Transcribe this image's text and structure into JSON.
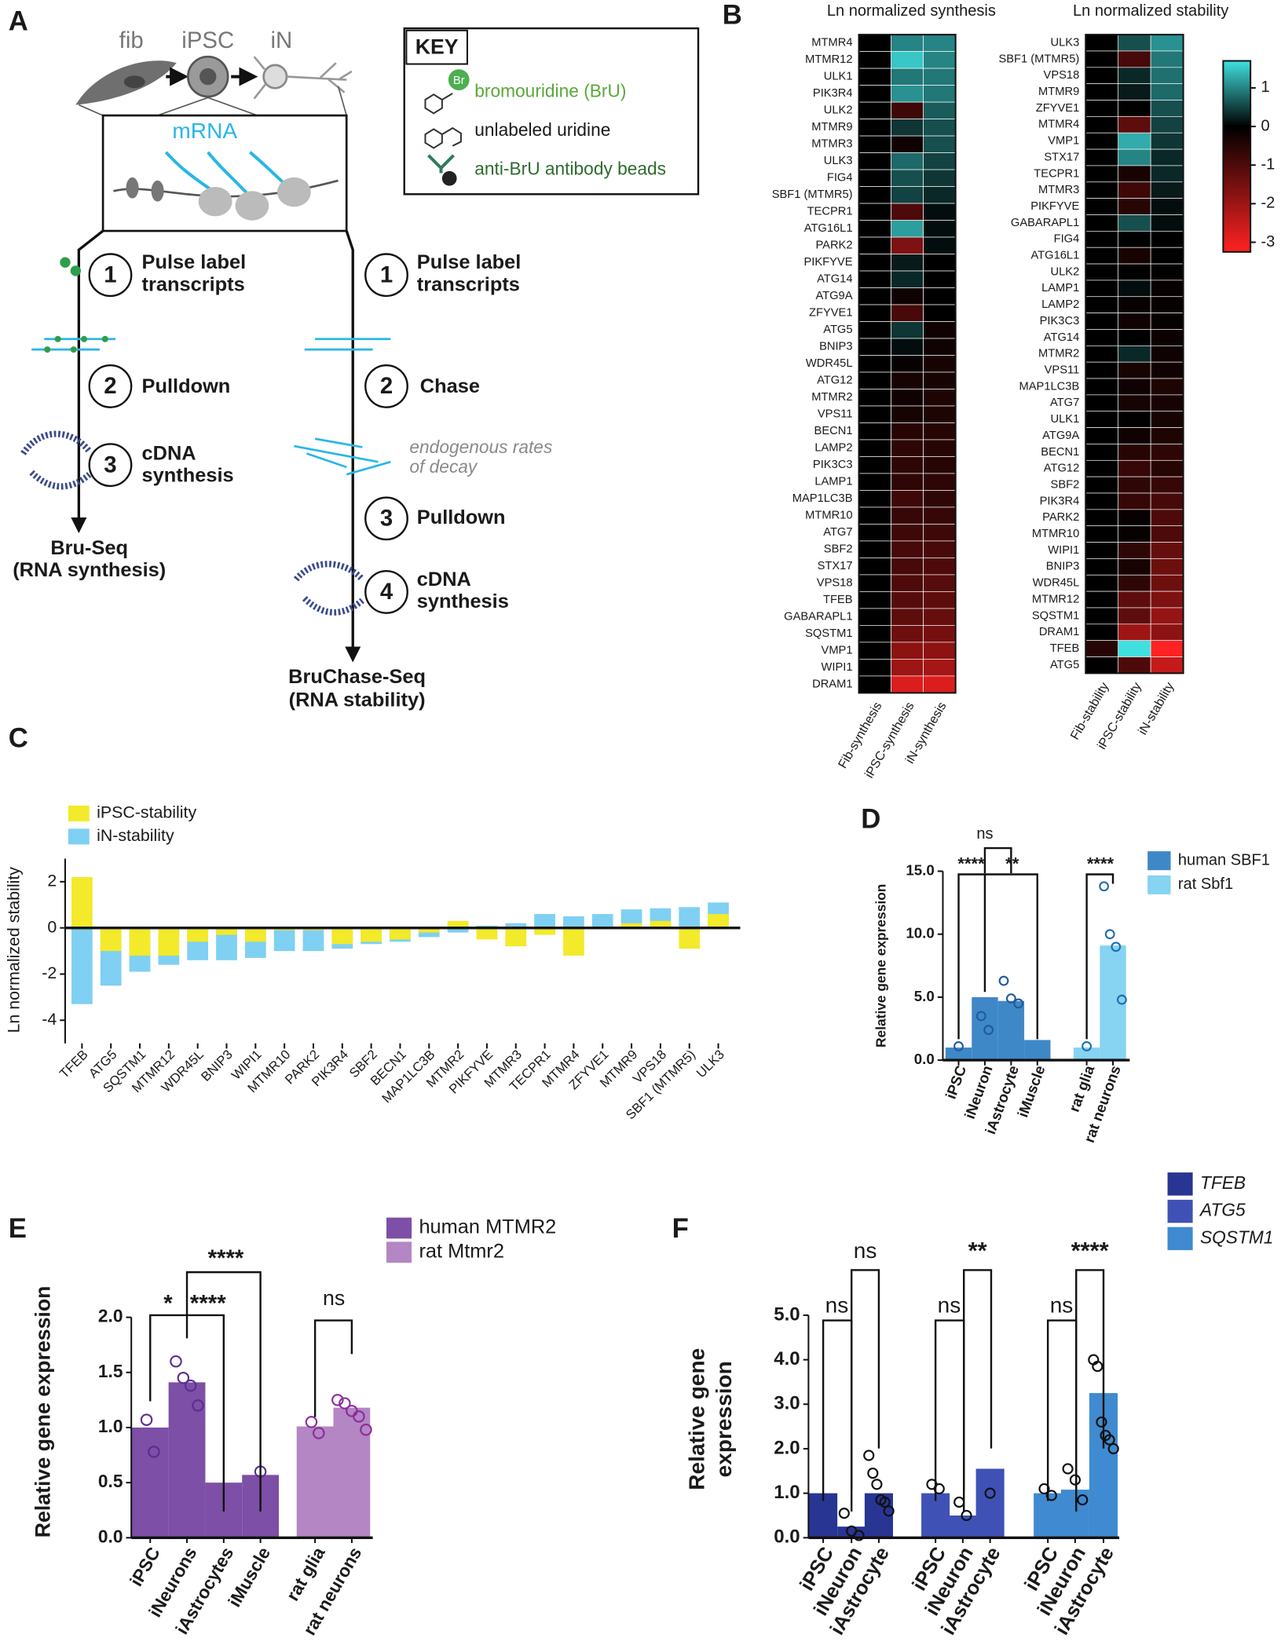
{
  "panels": [
    "A",
    "B",
    "C",
    "D",
    "E",
    "F"
  ],
  "panel_a": {
    "cells": [
      "fib",
      "iPSC",
      "iN"
    ],
    "mrna": "mRNA",
    "key": {
      "title": "KEY",
      "br": "Br",
      "items": [
        "bromouridine (BrU)",
        "unlabeled uridine",
        "anti-BrU antibody beads"
      ]
    },
    "bru_seq": {
      "steps": [
        {
          "number": "1",
          "lines": [
            "Pulse label",
            "transcripts"
          ]
        },
        {
          "number": "2",
          "lines": [
            "Pulldown"
          ]
        },
        {
          "number": "3",
          "lines": [
            "cDNA",
            "synthesis"
          ]
        }
      ],
      "result": [
        "Bru-Seq",
        "(RNA synthesis)"
      ]
    },
    "bruchase_seq": {
      "steps": [
        {
          "number": "1",
          "lines": [
            "Pulse label",
            "transcripts"
          ]
        },
        {
          "number": "2",
          "lines": [
            "Chase"
          ]
        },
        {
          "number": "3",
          "lines": [
            "Pulldown"
          ]
        },
        {
          "number": "4",
          "lines": [
            "cDNA",
            "synthesis"
          ]
        }
      ],
      "note": [
        "endogenous rates",
        "of decay"
      ],
      "result": [
        "BruChase-Seq",
        "(RNA stability)"
      ]
    }
  },
  "chart_data": [
    {
      "type": "heatmap",
      "title": "Ln normalized synthesis",
      "x": [
        "Fib-synthesis",
        "iPSC-synthesis",
        "iN-synthesis"
      ],
      "y": [
        "MTMR4",
        "MTMR12",
        "ULK1",
        "PIK3R4",
        "ULK2",
        "MTMR9",
        "MTMR3",
        "ULK3",
        "FIG4",
        "SBF1 (MTMR5)",
        "TECPR1",
        "ATG16L1",
        "PARK2",
        "PIKFYVE",
        "ATG14",
        "ATG9A",
        "ZFYVE1",
        "ATG5",
        "BNIP3",
        "WDR45L",
        "ATG12",
        "MTMR2",
        "VPS11",
        "BECN1",
        "LAMP2",
        "PIK3C3",
        "LAMP1",
        "MAP1LC3B",
        "MTMR10",
        "ATG7",
        "SBF2",
        "STX17",
        "VPS18",
        "TFEB",
        "GABARAPL1",
        "SQSTM1",
        "VMP1",
        "WIPI1",
        "DRAM1"
      ],
      "values": [
        [
          0,
          1.0,
          1.0
        ],
        [
          0,
          1.5,
          1.0
        ],
        [
          0,
          0.9,
          0.9
        ],
        [
          0,
          1.1,
          0.9
        ],
        [
          0,
          -0.8,
          0.7
        ],
        [
          0,
          0.4,
          0.6
        ],
        [
          0,
          -0.2,
          0.6
        ],
        [
          0,
          0.8,
          0.5
        ],
        [
          0,
          0.6,
          0.4
        ],
        [
          0,
          0.5,
          0.3
        ],
        [
          0,
          -1.0,
          0.1
        ],
        [
          0,
          1.2,
          0.1
        ],
        [
          0,
          -1.6,
          0.1
        ],
        [
          0,
          0.2,
          0
        ],
        [
          0,
          0.3,
          0
        ],
        [
          0,
          -0.2,
          0
        ],
        [
          0,
          -0.9,
          0
        ],
        [
          0,
          0.4,
          -0.2
        ],
        [
          0,
          0.1,
          -0.2
        ],
        [
          0,
          -0.1,
          -0.3
        ],
        [
          0,
          -0.3,
          -0.3
        ],
        [
          0,
          -0.2,
          -0.4
        ],
        [
          0,
          -0.3,
          -0.4
        ],
        [
          0,
          -0.5,
          -0.5
        ],
        [
          0,
          -0.6,
          -0.5
        ],
        [
          0,
          -0.6,
          -0.5
        ],
        [
          0,
          -0.6,
          -0.6
        ],
        [
          0,
          -0.8,
          -0.6
        ],
        [
          0,
          -0.7,
          -0.7
        ],
        [
          0,
          -0.8,
          -0.8
        ],
        [
          0,
          -0.9,
          -0.9
        ],
        [
          0,
          -0.9,
          -1.0
        ],
        [
          0,
          -1.0,
          -1.1
        ],
        [
          0,
          -1.1,
          -1.2
        ],
        [
          0,
          -1.2,
          -1.3
        ],
        [
          0,
          -1.4,
          -1.5
        ],
        [
          0,
          -1.8,
          -1.8
        ],
        [
          0,
          -2.0,
          -2.1
        ],
        [
          0,
          -2.8,
          -2.8
        ]
      ],
      "clim": [
        -3.25,
        1.7
      ],
      "colors": [
        "#ff2222",
        "#000000",
        "#40e0e0"
      ]
    },
    {
      "type": "heatmap",
      "title": "Ln normalized stability",
      "x": [
        "Fib-stability",
        "iPSC-stability",
        "iN-stability"
      ],
      "y": [
        "ULK3",
        "SBF1 (MTMR5)",
        "VPS18",
        "MTMR9",
        "ZFYVE1",
        "MTMR4",
        "VMP1",
        "STX17",
        "TECPR1",
        "MTMR3",
        "PIKFYVE",
        "GABARAPL1",
        "FIG4",
        "ATG16L1",
        "ULK2",
        "LAMP1",
        "LAMP2",
        "PIK3C3",
        "ATG14",
        "MTMR2",
        "VPS11",
        "MAP1LC3B",
        "ATG7",
        "ULK1",
        "ATG9A",
        "BECN1",
        "ATG12",
        "SBF2",
        "PIK3R4",
        "PARK2",
        "MTMR10",
        "WIPI1",
        "BNIP3",
        "WDR45L",
        "MTMR12",
        "SQSTM1",
        "DRAM1",
        "TFEB",
        "ATG5"
      ],
      "values": [
        [
          0,
          0.6,
          1.1
        ],
        [
          0,
          -0.9,
          0.9
        ],
        [
          0,
          0.3,
          0.85
        ],
        [
          0,
          0.2,
          0.8
        ],
        [
          0,
          0.0,
          0.6
        ],
        [
          0,
          -1.2,
          0.5
        ],
        [
          0,
          1.3,
          0.4
        ],
        [
          0,
          1.0,
          0.3
        ],
        [
          0,
          -0.3,
          0.3
        ],
        [
          0,
          -0.8,
          0.2
        ],
        [
          0,
          -0.5,
          0.1
        ],
        [
          0,
          0.6,
          0.1
        ],
        [
          0,
          0,
          0
        ],
        [
          0,
          -0.3,
          0
        ],
        [
          0,
          0,
          -0.05
        ],
        [
          0,
          0.1,
          -0.1
        ],
        [
          0,
          -0.1,
          -0.1
        ],
        [
          0,
          -0.2,
          -0.1
        ],
        [
          0,
          0,
          -0.15
        ],
        [
          0,
          0.3,
          -0.2
        ],
        [
          0,
          -0.3,
          -0.2
        ],
        [
          0,
          -0.2,
          -0.4
        ],
        [
          0,
          -0.3,
          -0.3
        ],
        [
          0,
          0,
          -0.3
        ],
        [
          0,
          -0.2,
          -0.4
        ],
        [
          0,
          -0.5,
          -0.6
        ],
        [
          0,
          -0.7,
          -0.5
        ],
        [
          0,
          -0.6,
          -0.7
        ],
        [
          0,
          -0.7,
          -0.9
        ],
        [
          0,
          -0.1,
          -1.0
        ],
        [
          0,
          -0.1,
          -1.0
        ],
        [
          0,
          -0.6,
          -1.3
        ],
        [
          0,
          -0.3,
          -1.4
        ],
        [
          0,
          -0.6,
          -1.4
        ],
        [
          0,
          -1.2,
          -1.6
        ],
        [
          0,
          -1.2,
          -1.9
        ],
        [
          0,
          -2.0,
          -1.8
        ],
        [
          -0.5,
          2.2,
          -3.3
        ],
        [
          0,
          -1.0,
          -2.5
        ]
      ],
      "clim": [
        -3.25,
        1.7
      ],
      "colors": [
        "#ff2222",
        "#000000",
        "#40e0e0"
      ],
      "colorbar_ticks": [
        1,
        0,
        -1,
        -2,
        -3
      ]
    },
    {
      "type": "bar",
      "y_label": "Ln normalized stability",
      "categories": [
        "TFEB",
        "ATG5",
        "SQSTM1",
        "MTMR12",
        "WDR45L",
        "BNIP3",
        "WIPI1",
        "MTMR10",
        "PARK2",
        "PIK3R4",
        "SBF2",
        "BECN1",
        "MAP1LC3B",
        "MTMR2",
        "PIKFYVE",
        "MTMR3",
        "TECPR1",
        "MTMR4",
        "ZFYVE1",
        "MTMR9",
        "VPS18",
        "SBF1 (MTMR5)",
        "ULK3"
      ],
      "series": [
        {
          "name": "iPSC-stability",
          "color": "#f2ea2a",
          "values": [
            2.2,
            -1.0,
            -1.2,
            -1.2,
            -0.6,
            -0.3,
            -0.6,
            -0.1,
            -0.1,
            -0.7,
            -0.6,
            -0.5,
            -0.2,
            0.3,
            -0.5,
            -0.8,
            -0.3,
            -1.2,
            0.0,
            0.2,
            0.3,
            -0.9,
            0.6
          ]
        },
        {
          "name": "iN-stability",
          "color": "#7fd0f2",
          "values": [
            -3.3,
            -2.5,
            -1.9,
            -1.6,
            -1.4,
            -1.4,
            -1.3,
            -1.0,
            -1.0,
            -0.9,
            -0.7,
            -0.6,
            -0.4,
            -0.2,
            0.1,
            0.2,
            0.6,
            0.5,
            0.6,
            0.8,
            0.85,
            0.9,
            1.1
          ]
        }
      ],
      "ylim": [
        -5,
        3
      ],
      "yticks": [
        2,
        0,
        -2,
        -4
      ]
    },
    {
      "type": "bar",
      "y_label": "Relative gene expression",
      "categories": [
        "iPSC",
        "iNeuron",
        "iAstrocyte",
        "iMuscle",
        "rat glia",
        "rat neurons"
      ],
      "series": [
        {
          "name": "human SBF1",
          "color": "#3f88c8",
          "point_color": "#1f5c9c",
          "values": [
            1.0,
            5.0,
            4.7,
            1.6,
            null,
            null
          ],
          "points": [
            [
              1.1
            ],
            [
              3.5,
              2.4
            ],
            [
              6.3,
              4.9,
              4.5
            ],
            [],
            [],
            []
          ]
        },
        {
          "name": "rat Sbf1",
          "color": "#86d3f2",
          "point_color": "#1f6fae",
          "values": [
            null,
            null,
            null,
            null,
            1.0,
            9.1
          ],
          "points": [
            [],
            [],
            [],
            [],
            [
              1.1
            ],
            [
              13.8,
              10.0,
              9.0,
              4.8
            ]
          ]
        }
      ],
      "ylim": [
        0,
        15
      ],
      "yticks": [
        {
          "value": 0,
          "label": "0.0"
        },
        {
          "value": 5,
          "label": "5.0"
        },
        {
          "value": 10,
          "label": "10.0"
        },
        {
          "value": 15,
          "label": "15.0"
        }
      ],
      "annotations": [
        "ns",
        "****",
        "**",
        "****"
      ]
    },
    {
      "type": "bar",
      "y_label": "Relative gene expression",
      "categories": [
        "iPSC",
        "iNeurons",
        "iAstrocytes",
        "iMuscle",
        "rat glia",
        "rat neurons"
      ],
      "series": [
        {
          "name": "human MTMR2",
          "color": "#7d4fa6",
          "point_color": "#5a2d91",
          "values": [
            1.0,
            1.41,
            0.5,
            0.57,
            null,
            null
          ],
          "points": [
            [
              1.07,
              0.78
            ],
            [
              1.6,
              1.45,
              1.38,
              1.2
            ],
            [],
            [
              0.6
            ],
            [],
            []
          ]
        },
        {
          "name": "rat Mtmr2",
          "color": "#b486c4",
          "point_color": "#8b2c9b",
          "values": [
            null,
            null,
            null,
            null,
            1.01,
            1.18
          ],
          "points": [
            [],
            [],
            [],
            [],
            [
              1.05,
              0.95
            ],
            [
              1.25,
              1.22,
              1.15,
              1.1,
              0.98
            ]
          ]
        }
      ],
      "ylim": [
        0,
        2
      ],
      "yticks": [
        {
          "value": 0,
          "label": "0.0"
        },
        {
          "value": 0.5,
          "label": "0.5"
        },
        {
          "value": 1,
          "label": "1.0"
        },
        {
          "value": 1.5,
          "label": "1.5"
        },
        {
          "value": 2,
          "label": "2.0"
        }
      ],
      "annotations": [
        "*",
        "****",
        "****",
        "ns"
      ]
    },
    {
      "type": "bar",
      "y_label": [
        "Relative gene",
        "expression"
      ],
      "categories": [
        "iPSC",
        "iNeuron",
        "iAstrocyte",
        "iPSC",
        "iNeuron",
        "iAstrocyte",
        "iPSC",
        "iNeuron",
        "iAstrocyte"
      ],
      "series": [
        {
          "name": "TFEB",
          "color": "#283593",
          "point_color": "#111111",
          "values": [
            1.0,
            0.25,
            1.0,
            null,
            null,
            null,
            null,
            null,
            null
          ],
          "points": [
            [],
            [
              0.55,
              0.15,
              0.05
            ],
            [
              1.85,
              1.45,
              1.2,
              0.85,
              0.8,
              0.6
            ],
            [],
            [],
            [],
            [],
            [],
            []
          ]
        },
        {
          "name": "ATG5",
          "color": "#3f51b5",
          "point_color": "#111111",
          "values": [
            null,
            null,
            null,
            1.0,
            0.5,
            1.55,
            null,
            null,
            null
          ],
          "points": [
            [],
            [],
            [],
            [
              1.2,
              1.1
            ],
            [
              0.8,
              0.5
            ],
            [
              1.0
            ],
            [],
            [],
            []
          ]
        },
        {
          "name": "SQSTM1",
          "color": "#3f8ad0",
          "point_color": "#111111",
          "values": [
            null,
            null,
            null,
            null,
            null,
            null,
            1.0,
            1.08,
            3.25
          ],
          "points": [
            [],
            [],
            [],
            [],
            [],
            [],
            [
              1.1,
              0.95
            ],
            [
              1.55,
              1.3,
              0.85
            ],
            [
              4.0,
              3.85,
              2.6,
              2.3,
              2.2,
              2.0
            ]
          ]
        }
      ],
      "ylim": [
        0,
        5
      ],
      "yticks": [
        {
          "value": 0,
          "label": "0.0"
        },
        {
          "value": 1,
          "label": "1.0"
        },
        {
          "value": 2,
          "label": "2.0"
        },
        {
          "value": 3,
          "label": "3.0"
        },
        {
          "value": 4,
          "label": "4.0"
        },
        {
          "value": 5,
          "label": "5.0"
        }
      ],
      "annotations": [
        "ns",
        "ns",
        "ns",
        "**",
        "ns",
        "****"
      ]
    }
  ]
}
